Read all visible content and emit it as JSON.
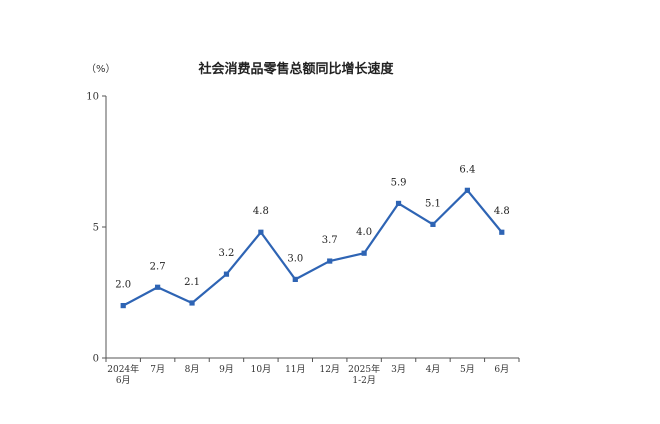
{
  "chart_data": {
    "type": "line",
    "title": "社会消费品零售总额同比增长速度",
    "unit": "（%）",
    "categories": [
      "2024年\n6月",
      "7月",
      "8月",
      "9月",
      "10月",
      "11月",
      "12月",
      "2025年\n1-2月",
      "3月",
      "4月",
      "5月",
      "6月"
    ],
    "series": [
      {
        "values": [
          2.0,
          2.7,
          2.1,
          3.2,
          4.8,
          3.0,
          3.7,
          4.0,
          5.9,
          5.1,
          6.4,
          4.8
        ]
      }
    ],
    "data_labels": [
      "2.0",
      "2.7",
      "2.1",
      "3.2",
      "4.8",
      "3.0",
      "3.7",
      "4.0",
      "5.9",
      "5.1",
      "6.4",
      "4.8"
    ],
    "ylim": [
      0,
      10
    ],
    "yticks": [
      0,
      5,
      10
    ],
    "grid": false,
    "line_color": "#2e64b4"
  }
}
